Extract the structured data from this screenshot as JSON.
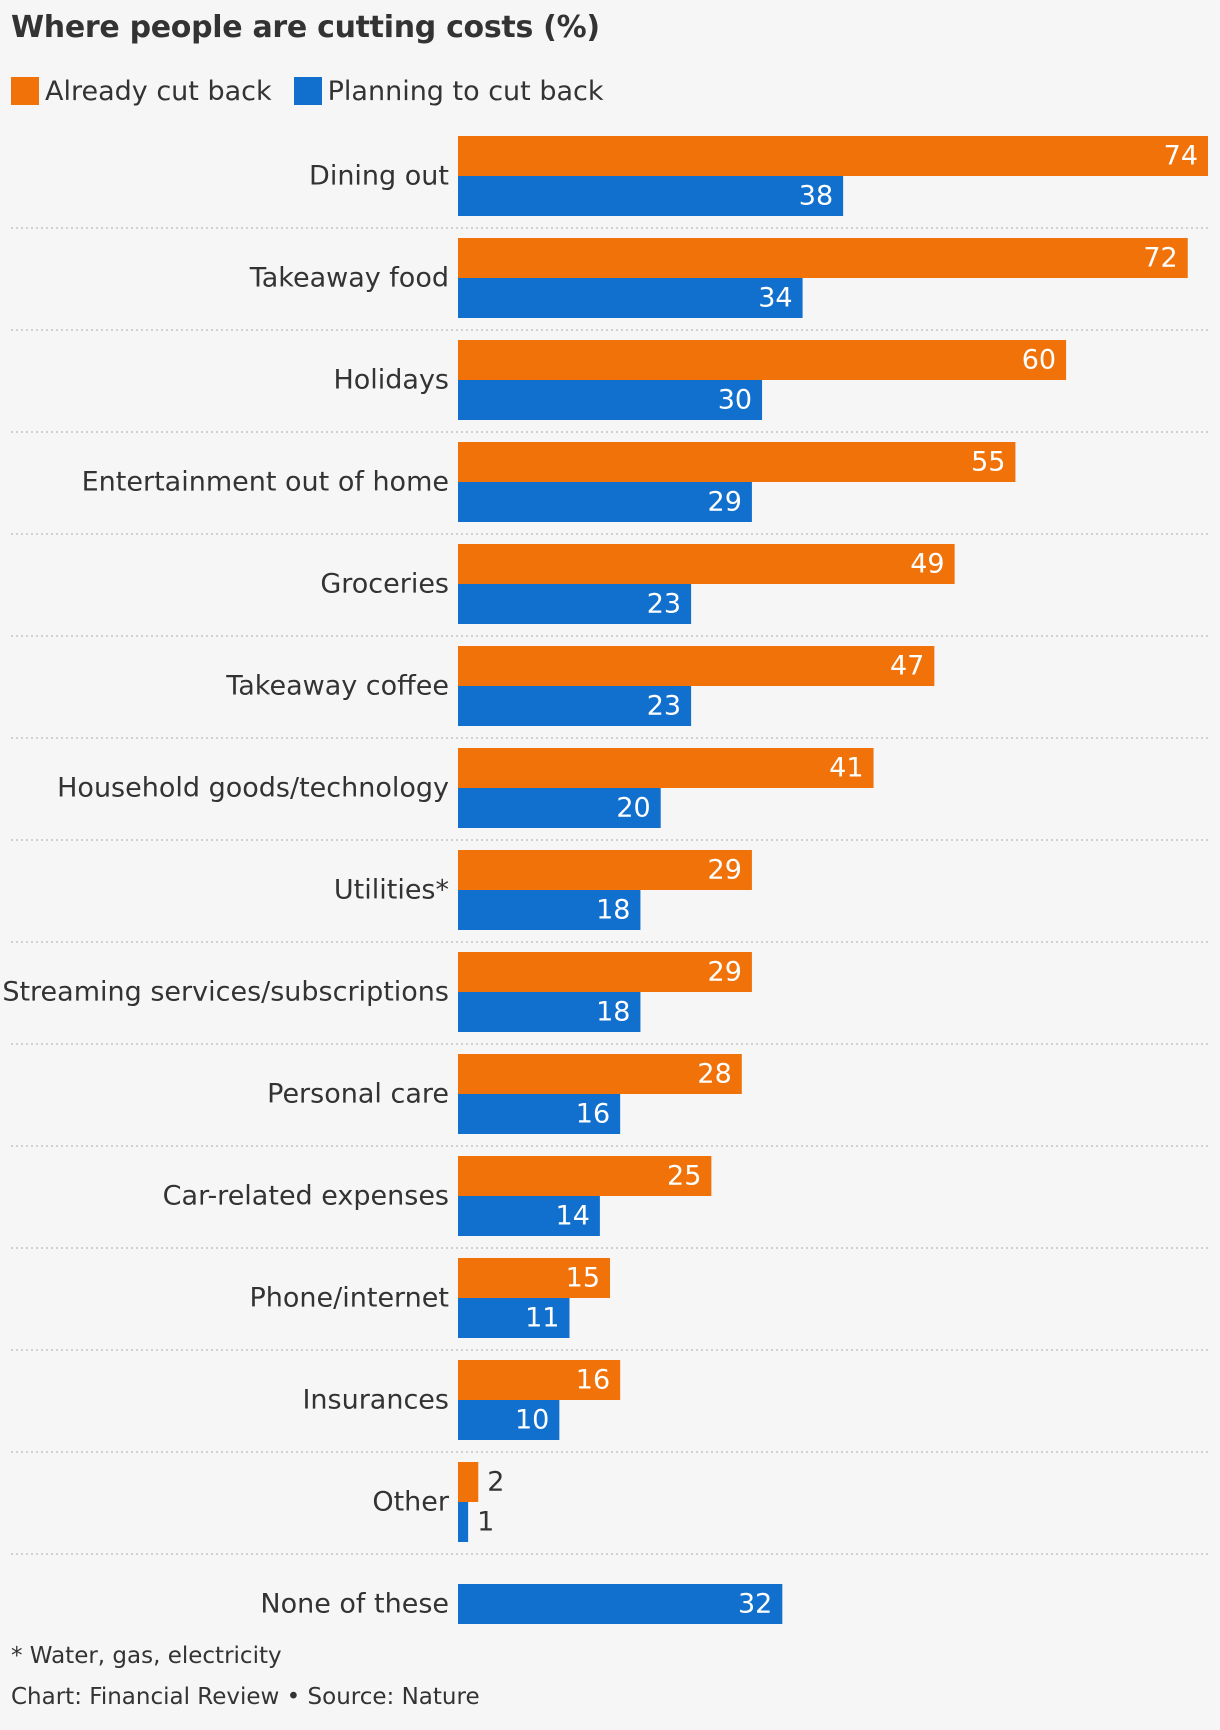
{
  "colors": {
    "already": "#f07209",
    "planning": "#1170cd",
    "divider": "#bbbbbb",
    "label_inside": "#ffffff",
    "label_outside": "#333333"
  },
  "footnote": "* Water, gas, electricity",
  "credit": "Chart: Financial Review • Source: Nature",
  "chart_data": {
    "type": "bar",
    "orientation": "horizontal",
    "title": "Where people are cutting costs (%)",
    "legend_position": "top-left",
    "grid": false,
    "xlim": [
      0,
      74
    ],
    "categories": [
      "Dining out",
      "Takeaway food",
      "Holidays",
      "Entertainment out of home",
      "Groceries",
      "Takeaway coffee",
      "Household goods/technology",
      "Utilities*",
      "Streaming services/subscriptions",
      "Personal care",
      "Car-related expenses",
      "Phone/internet",
      "Insurances",
      "Other",
      "None of these"
    ],
    "series": [
      {
        "name": "Already cut back",
        "color": "#f07209",
        "values": [
          74,
          72,
          60,
          55,
          49,
          47,
          41,
          29,
          29,
          28,
          25,
          15,
          16,
          2,
          null
        ]
      },
      {
        "name": "Planning to cut back",
        "color": "#1170cd",
        "values": [
          38,
          34,
          30,
          29,
          23,
          23,
          20,
          18,
          18,
          16,
          14,
          11,
          10,
          1,
          32
        ]
      }
    ]
  }
}
